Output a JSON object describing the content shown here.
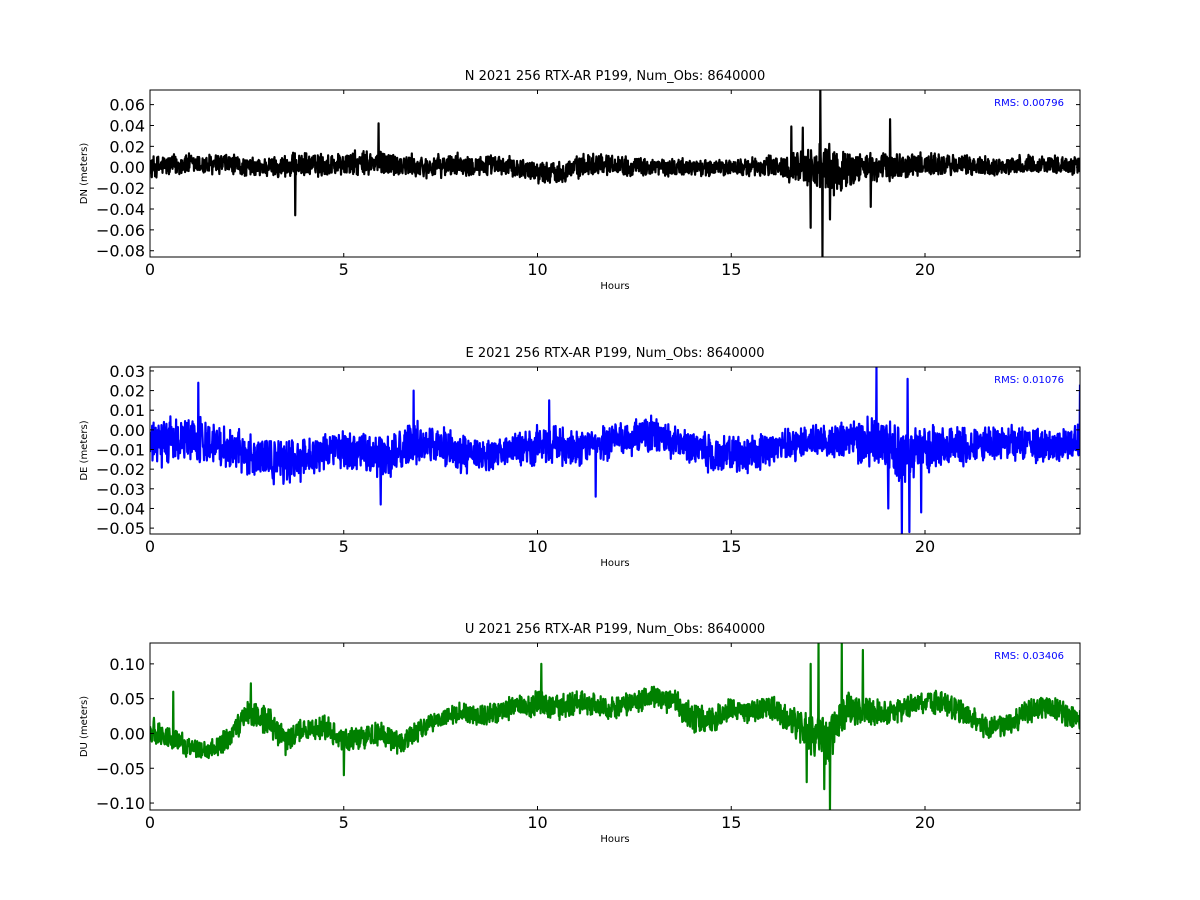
{
  "chart_data": [
    {
      "type": "line",
      "title": "N 2021 256 RTX-AR  P199, Num_Obs: 8640000",
      "xlabel": "Hours",
      "ylabel": "DN (meters)",
      "xlim": [
        0,
        24
      ],
      "ylim": [
        -0.086,
        0.074
      ],
      "xticks": [
        0,
        5,
        10,
        15,
        20
      ],
      "yticks": [
        -0.08,
        -0.06,
        -0.04,
        -0.02,
        0.0,
        0.02,
        0.04,
        0.06
      ],
      "ytick_labels": [
        "−0.08",
        "−0.06",
        "−0.04",
        "−0.02",
        "0.00",
        "0.02",
        "0.04",
        "0.06"
      ],
      "color": "#000000",
      "annotation": "RMS:  0.00796",
      "annotation_color": "#0000ff",
      "grid": false,
      "series": [
        {
          "x": [
            0,
            0.5,
            1,
            1.5,
            2,
            2.5,
            3,
            3.5,
            4,
            4.5,
            5,
            5.5,
            6,
            6.5,
            7,
            7.5,
            8,
            8.5,
            9,
            9.5,
            10,
            10.5,
            11,
            11.5,
            12,
            12.5,
            13,
            13.5,
            14,
            14.5,
            15,
            15.5,
            16,
            16.5,
            17,
            17.5,
            18,
            18.5,
            19,
            19.5,
            20,
            20.5,
            21,
            21.5,
            22,
            22.5,
            23,
            23.5,
            24
          ],
          "values": [
            0.0,
            0.002,
            0.003,
            0.002,
            0.003,
            0.0,
            0.0,
            0.001,
            0.002,
            0.002,
            0.003,
            0.003,
            0.004,
            0.002,
            0.0,
            0.001,
            0.003,
            0.002,
            0.001,
            0.0,
            -0.004,
            -0.005,
            0.0,
            0.004,
            0.003,
            0.0,
            0.0,
            0.0,
            0.0,
            -0.001,
            0.0,
            0.0,
            0.001,
            0.0,
            0.0,
            -0.005,
            -0.002,
            0.0,
            0.0,
            0.001,
            0.003,
            0.002,
            0.002,
            0.001,
            0.001,
            0.002,
            0.003,
            0.002,
            0.002
          ],
          "envelope": [
            0.012,
            0.012,
            0.012,
            0.012,
            0.012,
            0.01,
            0.011,
            0.013,
            0.013,
            0.013,
            0.013,
            0.014,
            0.014,
            0.013,
            0.012,
            0.012,
            0.012,
            0.012,
            0.011,
            0.011,
            0.012,
            0.012,
            0.012,
            0.012,
            0.011,
            0.01,
            0.01,
            0.01,
            0.009,
            0.009,
            0.009,
            0.01,
            0.012,
            0.015,
            0.022,
            0.03,
            0.02,
            0.016,
            0.016,
            0.014,
            0.014,
            0.012,
            0.011,
            0.011,
            0.01,
            0.01,
            0.01,
            0.01,
            0.01
          ],
          "spikes": [
            [
              3.75,
              -0.046
            ],
            [
              5.9,
              0.042
            ],
            [
              16.55,
              0.039
            ],
            [
              16.85,
              0.038
            ],
            [
              17.05,
              -0.058
            ],
            [
              17.3,
              0.074
            ],
            [
              17.35,
              -0.086
            ],
            [
              17.55,
              -0.05
            ],
            [
              18.6,
              -0.038
            ],
            [
              19.1,
              0.046
            ]
          ]
        }
      ]
    },
    {
      "type": "line",
      "title": "E 2021 256 RTX-AR  P199, Num_Obs: 8640000",
      "xlabel": "Hours",
      "ylabel": "DE (meters)",
      "xlim": [
        0,
        24
      ],
      "ylim": [
        -0.053,
        0.032
      ],
      "xticks": [
        0,
        5,
        10,
        15,
        20
      ],
      "yticks": [
        -0.05,
        -0.04,
        -0.03,
        -0.02,
        -0.01,
        0.0,
        0.01,
        0.02,
        0.03
      ],
      "ytick_labels": [
        "−0.05",
        "−0.04",
        "−0.03",
        "−0.02",
        "−0.01",
        "0.00",
        "0.01",
        "0.02",
        "0.03"
      ],
      "color": "#0000ff",
      "annotation": "RMS:  0.01076",
      "annotation_color": "#0000ff",
      "grid": false,
      "series": [
        {
          "x": [
            0,
            0.5,
            1,
            1.5,
            2,
            2.5,
            3,
            3.5,
            4,
            4.5,
            5,
            5.5,
            6,
            6.5,
            7,
            7.5,
            8,
            8.5,
            9,
            9.5,
            10,
            10.5,
            11,
            11.5,
            12,
            12.5,
            13,
            13.5,
            14,
            14.5,
            15,
            15.5,
            16,
            16.5,
            17,
            17.5,
            18,
            18.5,
            19,
            19.5,
            20,
            20.5,
            21,
            21.5,
            22,
            22.5,
            23,
            23.5,
            24
          ],
          "values": [
            -0.008,
            -0.006,
            -0.004,
            -0.006,
            -0.008,
            -0.012,
            -0.015,
            -0.016,
            -0.014,
            -0.01,
            -0.01,
            -0.012,
            -0.014,
            -0.01,
            -0.006,
            -0.008,
            -0.012,
            -0.014,
            -0.012,
            -0.01,
            -0.008,
            -0.008,
            -0.01,
            -0.008,
            -0.006,
            -0.004,
            -0.002,
            -0.006,
            -0.01,
            -0.012,
            -0.013,
            -0.012,
            -0.01,
            -0.008,
            -0.006,
            -0.005,
            -0.006,
            -0.006,
            -0.008,
            -0.012,
            -0.01,
            -0.008,
            -0.008,
            -0.006,
            -0.006,
            -0.006,
            -0.008,
            -0.008,
            -0.006
          ],
          "envelope": [
            0.012,
            0.013,
            0.013,
            0.013,
            0.012,
            0.012,
            0.012,
            0.013,
            0.012,
            0.011,
            0.011,
            0.012,
            0.012,
            0.012,
            0.012,
            0.011,
            0.011,
            0.01,
            0.01,
            0.01,
            0.011,
            0.011,
            0.011,
            0.01,
            0.01,
            0.01,
            0.01,
            0.01,
            0.01,
            0.011,
            0.011,
            0.01,
            0.01,
            0.01,
            0.01,
            0.01,
            0.011,
            0.014,
            0.016,
            0.016,
            0.014,
            0.012,
            0.011,
            0.01,
            0.01,
            0.01,
            0.01,
            0.01,
            0.01
          ],
          "spikes": [
            [
              1.25,
              0.024
            ],
            [
              5.95,
              -0.038
            ],
            [
              6.8,
              0.02
            ],
            [
              10.3,
              0.015
            ],
            [
              11.5,
              -0.034
            ],
            [
              18.75,
              0.032
            ],
            [
              19.05,
              -0.04
            ],
            [
              19.4,
              -0.053
            ],
            [
              19.55,
              0.026
            ],
            [
              19.6,
              -0.052
            ],
            [
              19.9,
              -0.042
            ],
            [
              24,
              0.023
            ]
          ]
        }
      ]
    },
    {
      "type": "line",
      "title": "U 2021 256 RTX-AR  P199, Num_Obs: 8640000",
      "xlabel": "Hours",
      "ylabel": "DU (meters)",
      "xlim": [
        0,
        24
      ],
      "ylim": [
        -0.11,
        0.13
      ],
      "xticks": [
        0,
        5,
        10,
        15,
        20
      ],
      "yticks": [
        -0.1,
        -0.05,
        0.0,
        0.05,
        0.1
      ],
      "ytick_labels": [
        "−0.10",
        "−0.05",
        "0.00",
        "0.05",
        "0.10"
      ],
      "color": "#008000",
      "annotation": "RMS:  0.03406",
      "annotation_color": "#0000ff",
      "grid": false,
      "series": [
        {
          "x": [
            0,
            0.5,
            1,
            1.5,
            2,
            2.5,
            3,
            3.5,
            4,
            4.5,
            5,
            5.5,
            6,
            6.5,
            7,
            7.5,
            8,
            8.5,
            9,
            9.5,
            10,
            10.5,
            11,
            11.5,
            12,
            12.5,
            13,
            13.5,
            14,
            14.5,
            15,
            15.5,
            16,
            16.5,
            17,
            17.5,
            18,
            18.5,
            19,
            19.5,
            20,
            20.5,
            21,
            21.5,
            22,
            22.5,
            23,
            23.5,
            24
          ],
          "values": [
            0.005,
            -0.005,
            -0.02,
            -0.025,
            -0.01,
            0.03,
            0.02,
            -0.01,
            0.005,
            0.01,
            -0.01,
            -0.005,
            0.0,
            -0.015,
            0.005,
            0.02,
            0.03,
            0.025,
            0.03,
            0.04,
            0.045,
            0.035,
            0.045,
            0.04,
            0.035,
            0.045,
            0.055,
            0.045,
            0.02,
            0.02,
            0.035,
            0.03,
            0.04,
            0.02,
            0.0,
            -0.01,
            0.04,
            0.03,
            0.03,
            0.035,
            0.045,
            0.045,
            0.03,
            0.01,
            0.01,
            0.025,
            0.04,
            0.03,
            0.02
          ],
          "envelope": [
            0.022,
            0.02,
            0.016,
            0.016,
            0.02,
            0.022,
            0.022,
            0.022,
            0.02,
            0.02,
            0.02,
            0.02,
            0.02,
            0.02,
            0.018,
            0.016,
            0.016,
            0.018,
            0.018,
            0.02,
            0.024,
            0.022,
            0.02,
            0.018,
            0.018,
            0.018,
            0.018,
            0.02,
            0.024,
            0.02,
            0.018,
            0.018,
            0.02,
            0.024,
            0.034,
            0.04,
            0.03,
            0.024,
            0.02,
            0.02,
            0.02,
            0.02,
            0.018,
            0.018,
            0.018,
            0.02,
            0.02,
            0.018,
            0.02
          ],
          "spikes": [
            [
              0.6,
              0.06
            ],
            [
              2.6,
              0.072
            ],
            [
              5.0,
              -0.06
            ],
            [
              10.1,
              0.1
            ],
            [
              16.95,
              -0.07
            ],
            [
              17.05,
              0.1
            ],
            [
              17.25,
              0.13
            ],
            [
              17.4,
              -0.08
            ],
            [
              17.55,
              -0.11
            ],
            [
              17.85,
              0.13
            ],
            [
              18.4,
              0.12
            ]
          ]
        }
      ]
    }
  ]
}
